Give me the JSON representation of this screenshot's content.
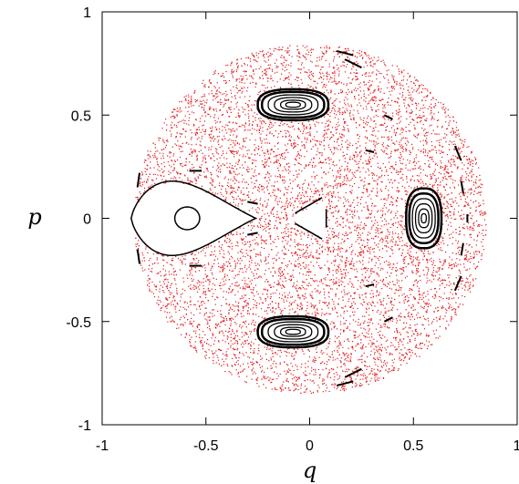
{
  "chart_data": {
    "type": "scatter",
    "title": "",
    "xlabel": "q",
    "ylabel": "p",
    "xlim": [
      -1,
      1
    ],
    "ylim": [
      -1,
      1
    ],
    "grid": false,
    "x_ticks": [
      -1,
      -0.5,
      0,
      0.5,
      1
    ],
    "y_ticks": [
      -1,
      -0.5,
      0,
      0.5,
      1
    ],
    "x_tick_labels": [
      "-1",
      "-0.5",
      "0",
      "0.5",
      "1"
    ],
    "y_tick_labels": [
      "-1",
      "-0.5",
      "0",
      "0.5",
      "1"
    ],
    "chaotic_sea": {
      "color": "#e41a1c",
      "marker": "dot",
      "region": "disk centered at (0, 0), radius 0.85",
      "excluded_islands": "regular islands listed below"
    },
    "regular_orbits": {
      "color": "#000000",
      "islands": [
        {
          "center": [
            -0.6,
            0.0
          ],
          "size": [
            0.3,
            0.2
          ],
          "note": "large teardrop island pointing toward origin, one inner orbit"
        },
        {
          "center": [
            0.55,
            0.0
          ],
          "size": [
            0.12,
            0.28
          ],
          "note": "right island, nested orbits"
        },
        {
          "center": [
            -0.08,
            0.55
          ],
          "size": [
            0.25,
            0.13
          ],
          "note": "upper island, nested orbits"
        },
        {
          "center": [
            -0.08,
            -0.55
          ],
          "size": [
            0.25,
            0.13
          ],
          "note": "lower island, nested orbits"
        }
      ],
      "central_triangle": {
        "vertices": [
          [
            0.08,
            0.1
          ],
          [
            0.08,
            -0.1
          ],
          [
            -0.1,
            0.0
          ]
        ]
      },
      "dashed_chains_near_edge": true
    }
  }
}
